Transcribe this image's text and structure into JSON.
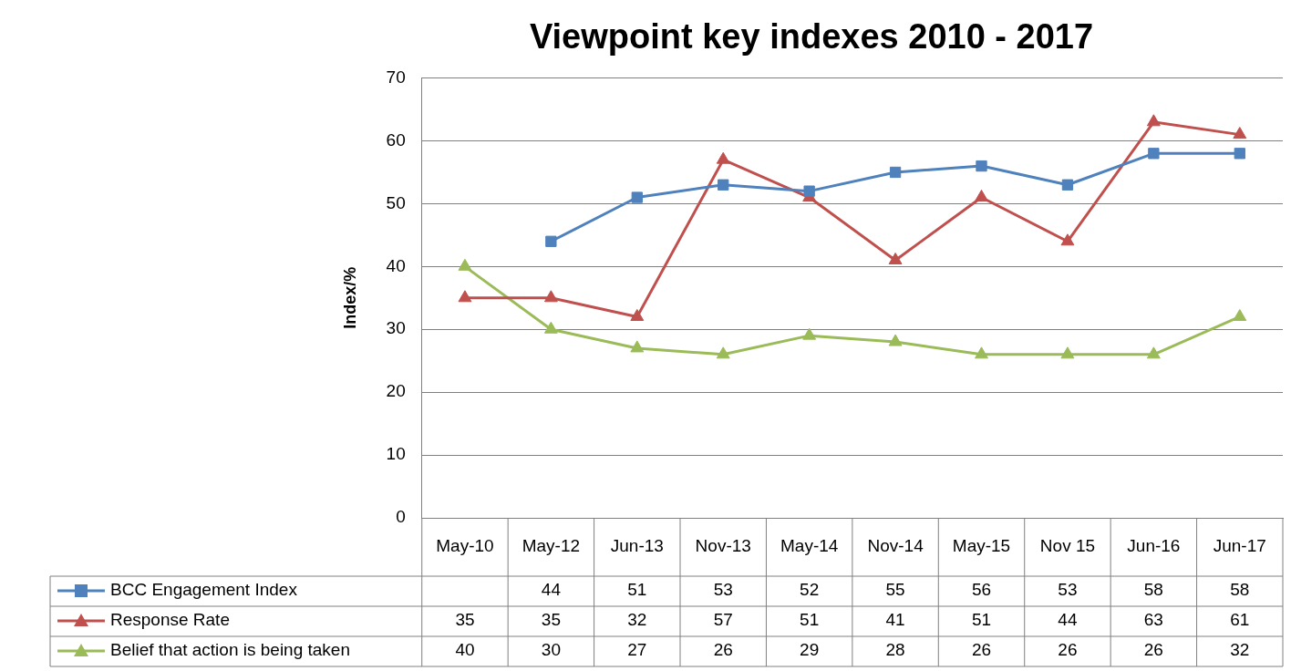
{
  "chart_data": {
    "type": "line",
    "title": "Viewpoint key indexes 2010 - 2017",
    "ylabel": "Index/%",
    "categories": [
      "May-10",
      "May-12",
      "Jun-13",
      "Nov-13",
      "May-14",
      "Nov-14",
      "May-15",
      "Nov 15",
      "Jun-16",
      "Jun-17"
    ],
    "series": [
      {
        "name": "BCC Engagement Index",
        "color": "#4f81bd",
        "marker": "square",
        "values": [
          null,
          44,
          51,
          53,
          52,
          55,
          56,
          53,
          58,
          58
        ]
      },
      {
        "name": "Response Rate",
        "color": "#c0504d",
        "marker": "triangle",
        "values": [
          35,
          35,
          32,
          57,
          51,
          41,
          51,
          44,
          63,
          61
        ]
      },
      {
        "name": "Belief that action is being taken",
        "color": "#9bbb59",
        "marker": "triangle",
        "values": [
          40,
          30,
          27,
          26,
          29,
          28,
          26,
          26,
          26,
          32
        ]
      }
    ],
    "ylim": [
      0,
      70
    ],
    "yticks": [
      0,
      10,
      20,
      30,
      40,
      50,
      60,
      70
    ],
    "grid": "y",
    "legend": "bottom",
    "data_labels": true
  }
}
